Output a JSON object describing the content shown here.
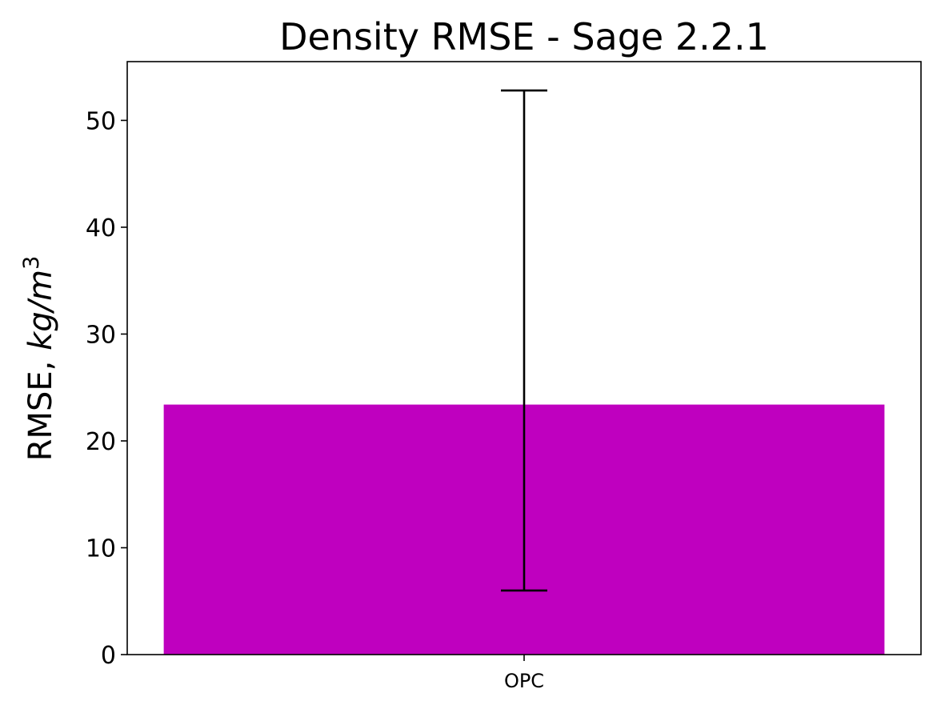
{
  "chart_data": {
    "type": "bar",
    "title": "Density RMSE - Sage 2.2.1",
    "ylabel": {
      "prefix": "RMSE, ",
      "unit": "kg/m",
      "unit_exponent": "3"
    },
    "xlabel": "",
    "categories": [
      "OPC"
    ],
    "values": [
      23.4
    ],
    "error_low": [
      6.0
    ],
    "error_high": [
      52.8
    ],
    "ylim": [
      0,
      55.5
    ],
    "yticks": [
      0,
      10,
      20,
      30,
      40,
      50
    ],
    "grid": false,
    "legend": "none",
    "bar_color": "#bf00bf",
    "errorbar_color": "#000000"
  }
}
